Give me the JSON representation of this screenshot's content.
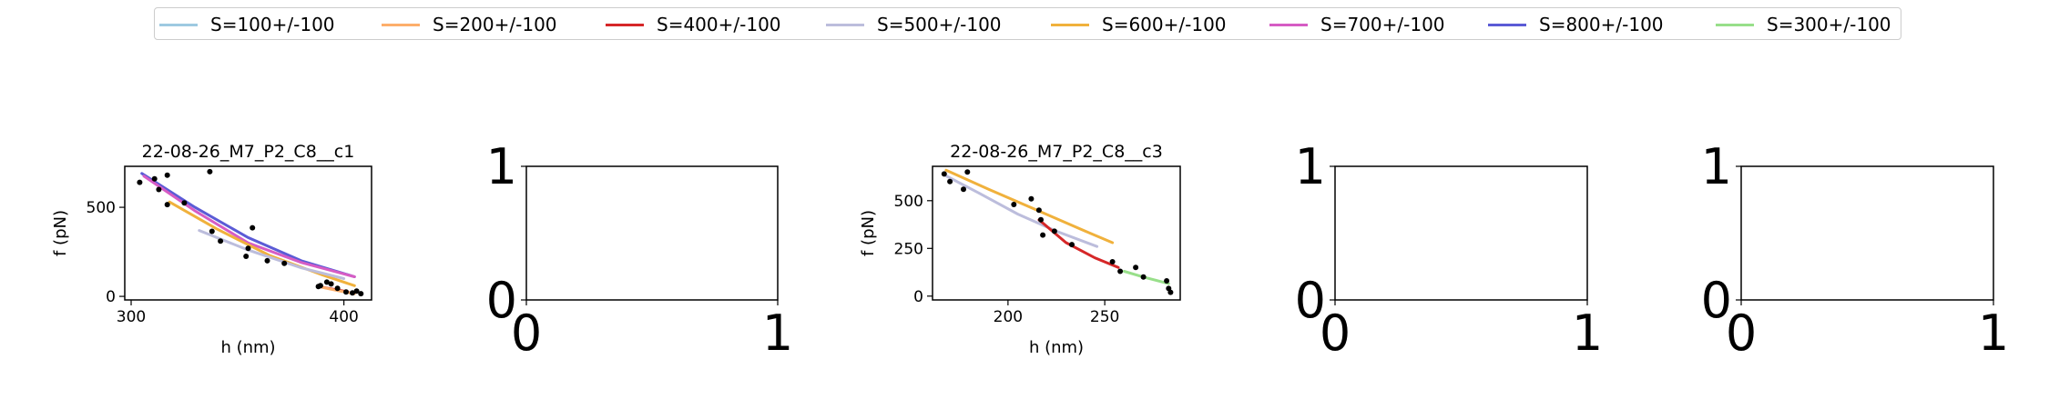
{
  "legend": {
    "items": [
      {
        "label": "S=100+/-100",
        "color": "#9ecae1"
      },
      {
        "label": "S=200+/-100",
        "color": "#fdae6b"
      },
      {
        "label": "S=400+/-100",
        "color": "#d62728"
      },
      {
        "label": "S=500+/-100",
        "color": "#bcbddc"
      },
      {
        "label": "S=600+/-100",
        "color": "#f0b13c"
      },
      {
        "label": "S=700+/-100",
        "color": "#d65cc4"
      },
      {
        "label": "S=800+/-100",
        "color": "#5b5bd6"
      },
      {
        "label": "S=300+/-100",
        "color": "#98df8a"
      }
    ]
  },
  "chart_data": [
    {
      "type": "scatter",
      "title": "22-08-26_M7_P2_C8__c1",
      "xlabel": "h (nm)",
      "ylabel": "f (pN)",
      "xlim": [
        297,
        413
      ],
      "ylim": [
        -20,
        730
      ],
      "xticks": [
        300,
        400
      ],
      "yticks": [
        0,
        500
      ],
      "points": [
        [
          304,
          640
        ],
        [
          311,
          660
        ],
        [
          313,
          600
        ],
        [
          317,
          680
        ],
        [
          317,
          515
        ],
        [
          325,
          525
        ],
        [
          337,
          700
        ],
        [
          338,
          365
        ],
        [
          342,
          310
        ],
        [
          354,
          225
        ],
        [
          355,
          270
        ],
        [
          357,
          385
        ],
        [
          364,
          200
        ],
        [
          372,
          185
        ],
        [
          388,
          55
        ],
        [
          389,
          60
        ],
        [
          392,
          80
        ],
        [
          394,
          70
        ],
        [
          397,
          45
        ],
        [
          401,
          25
        ],
        [
          404,
          20
        ],
        [
          406,
          30
        ],
        [
          408,
          15
        ]
      ],
      "series": [
        {
          "name": "S=800+/-100",
          "color": "#5b5bd6",
          "x": [
            305,
            330,
            355,
            380,
            405
          ],
          "y": [
            690,
            500,
            330,
            200,
            110
          ]
        },
        {
          "name": "S=700+/-100",
          "color": "#d65cc4",
          "x": [
            306,
            330,
            355,
            380,
            405
          ],
          "y": [
            675,
            480,
            300,
            190,
            110
          ]
        },
        {
          "name": "S=600+/-100",
          "color": "#f0b13c",
          "x": [
            318,
            340,
            365,
            390,
            405
          ],
          "y": [
            530,
            380,
            230,
            120,
            60
          ]
        },
        {
          "name": "S=500+/-100",
          "color": "#bcbddc",
          "x": [
            332,
            355,
            380,
            400
          ],
          "y": [
            370,
            260,
            160,
            100
          ]
        },
        {
          "name": "S=400+/-100",
          "color": "#d62728",
          "x": [
            388,
            395,
            402
          ],
          "y": [
            55,
            40,
            25
          ]
        },
        {
          "name": "S=200+/-100",
          "color": "#fdae6b",
          "x": [
            390,
            398,
            405
          ],
          "y": [
            50,
            30,
            15
          ]
        }
      ]
    },
    {
      "type": "scatter",
      "title": "",
      "xlabel": "",
      "ylabel": "",
      "xlim": [
        0,
        1
      ],
      "ylim": [
        0,
        1
      ],
      "xticks": [
        0,
        1
      ],
      "yticks": [
        0,
        1
      ],
      "points": [],
      "series": []
    },
    {
      "type": "scatter",
      "title": "22-08-26_M7_P2_C8__c3",
      "xlabel": "h (nm)",
      "ylabel": "f (pN)",
      "xlim": [
        161,
        289
      ],
      "ylim": [
        -20,
        680
      ],
      "xticks": [
        200,
        250
      ],
      "yticks": [
        0,
        250,
        500
      ],
      "points": [
        [
          167,
          640
        ],
        [
          170,
          600
        ],
        [
          177,
          560
        ],
        [
          179,
          650
        ],
        [
          203,
          480
        ],
        [
          212,
          510
        ],
        [
          216,
          450
        ],
        [
          217,
          400
        ],
        [
          218,
          320
        ],
        [
          224,
          340
        ],
        [
          233,
          270
        ],
        [
          254,
          180
        ],
        [
          258,
          130
        ],
        [
          266,
          150
        ],
        [
          270,
          100
        ],
        [
          282,
          80
        ],
        [
          283,
          40
        ],
        [
          284,
          20
        ]
      ],
      "series": [
        {
          "name": "S=600+/-100",
          "color": "#f0b13c",
          "x": [
            168,
            190,
            215,
            240,
            254
          ],
          "y": [
            660,
            560,
            450,
            340,
            280
          ]
        },
        {
          "name": "S=500+/-100",
          "color": "#bcbddc",
          "x": [
            168,
            185,
            205,
            225,
            246
          ],
          "y": [
            630,
            540,
            430,
            340,
            260
          ]
        },
        {
          "name": "S=400+/-100",
          "color": "#d62728",
          "x": [
            216,
            230,
            245,
            257
          ],
          "y": [
            400,
            280,
            200,
            150
          ]
        },
        {
          "name": "S=300+/-100",
          "color": "#98df8a",
          "x": [
            260,
            270,
            283
          ],
          "y": [
            130,
            100,
            65
          ]
        }
      ]
    },
    {
      "type": "scatter",
      "title": "",
      "xlabel": "",
      "ylabel": "",
      "xlim": [
        0,
        1
      ],
      "ylim": [
        0,
        1
      ],
      "xticks": [
        0,
        1
      ],
      "yticks": [
        0,
        1
      ],
      "points": [],
      "series": []
    },
    {
      "type": "scatter",
      "title": "",
      "xlabel": "",
      "ylabel": "",
      "xlim": [
        0,
        1
      ],
      "ylim": [
        0,
        1
      ],
      "xticks": [
        0,
        1
      ],
      "yticks": [
        0,
        1
      ],
      "points": [],
      "series": []
    }
  ]
}
